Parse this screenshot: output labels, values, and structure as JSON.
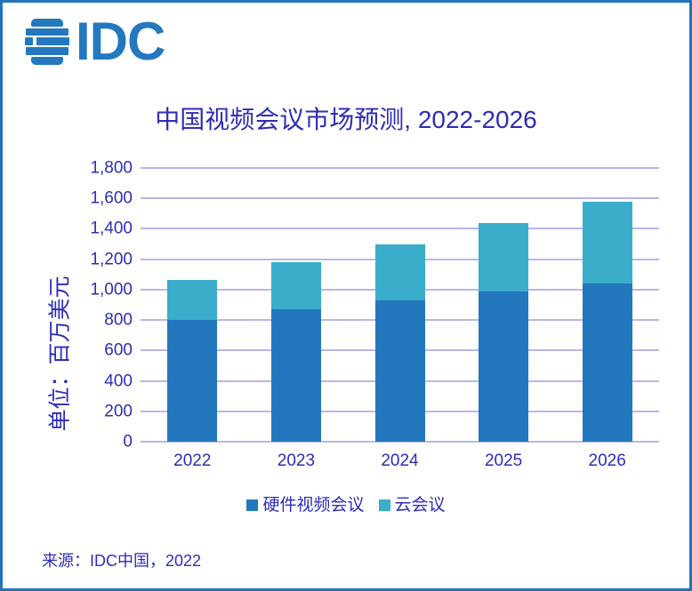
{
  "logo": {
    "text": "IDC"
  },
  "title": "中国视频会议市场预测, 2022-2026",
  "source": "来源：IDC中国，2022",
  "colors": {
    "accent_blue": "#2478be",
    "border_blue": "#2273b5",
    "text_blue": "#2d2db6",
    "gridline": "#b7b7ec",
    "hardware": "#2377bc",
    "cloud": "#39adc9"
  },
  "chart_data": {
    "type": "bar",
    "stacked": true,
    "title": "中国视频会议市场预测, 2022-2026",
    "categories": [
      "2022",
      "2023",
      "2024",
      "2025",
      "2026"
    ],
    "series": [
      {
        "name": "硬件视频会议",
        "color_key": "hardware",
        "values": [
          800,
          870,
          930,
          985,
          1040
        ]
      },
      {
        "name": "云会议",
        "color_key": "cloud",
        "values": [
          265,
          310,
          370,
          450,
          540
        ]
      }
    ],
    "totals": [
      1065,
      1180,
      1300,
      1435,
      1580
    ],
    "ylabel": "单位：百万美元",
    "xlabel": "",
    "ylim": [
      0,
      1800
    ],
    "ytick_step": 200,
    "ytick_labels": [
      "0",
      "200",
      "400",
      "600",
      "800",
      "1,000",
      "1,200",
      "1,400",
      "1,600",
      "1,800"
    ],
    "grid": true,
    "legend_position": "bottom"
  }
}
